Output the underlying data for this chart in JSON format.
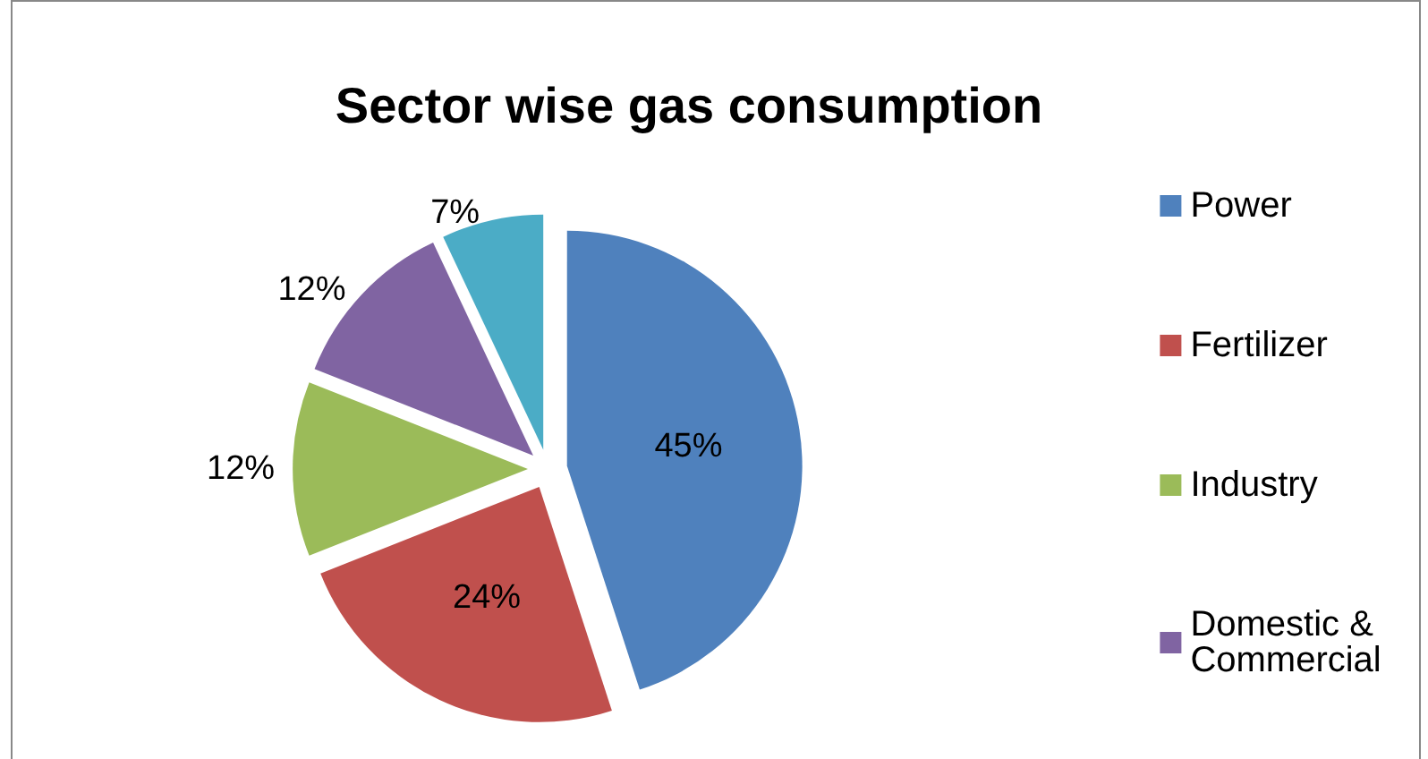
{
  "chart_data": {
    "type": "pie",
    "title": "Sector wise gas consumption",
    "categories": [
      "Power",
      "Fertilizer",
      "Industry",
      "Domestic & Commercial",
      null
    ],
    "values": [
      45,
      24,
      12,
      12,
      7
    ],
    "colors": [
      "#4f81bd",
      "#c0504d",
      "#9bbb59",
      "#8064a2",
      "#4bacc6"
    ],
    "value_labels": [
      "45%",
      "24%",
      "12%",
      "12%",
      "7%"
    ],
    "data_labels": true,
    "legend": "right"
  }
}
